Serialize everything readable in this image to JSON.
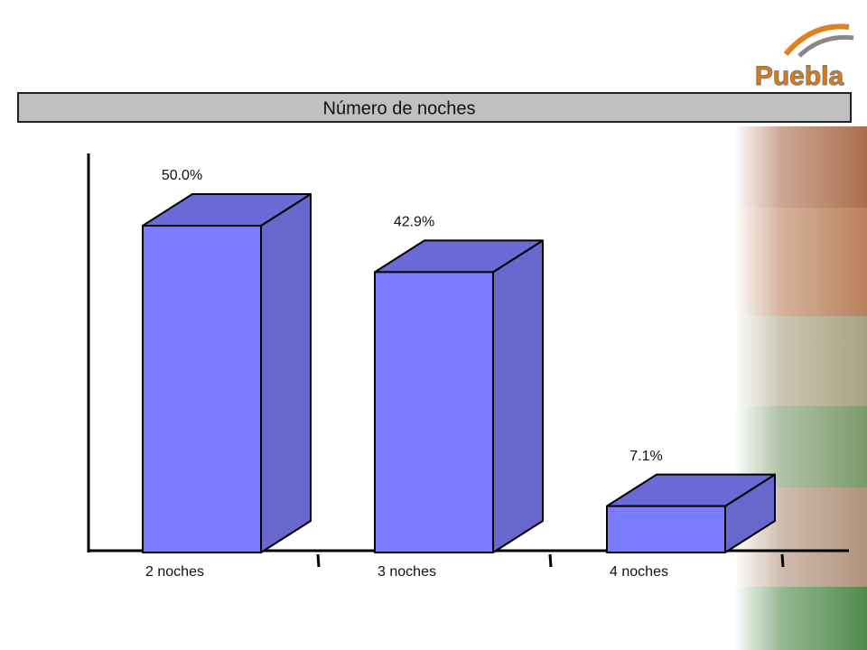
{
  "chart_data": {
    "type": "bar3d",
    "title": "Número de noches",
    "logo": "Puebla",
    "categories": [
      "2 noches",
      "3 noches",
      "4 noches"
    ],
    "values": [
      50.0,
      42.9,
      7.1
    ],
    "value_labels": [
      "50.0%",
      "42.9%",
      "7.1%"
    ],
    "color": "#7b7bff"
  }
}
